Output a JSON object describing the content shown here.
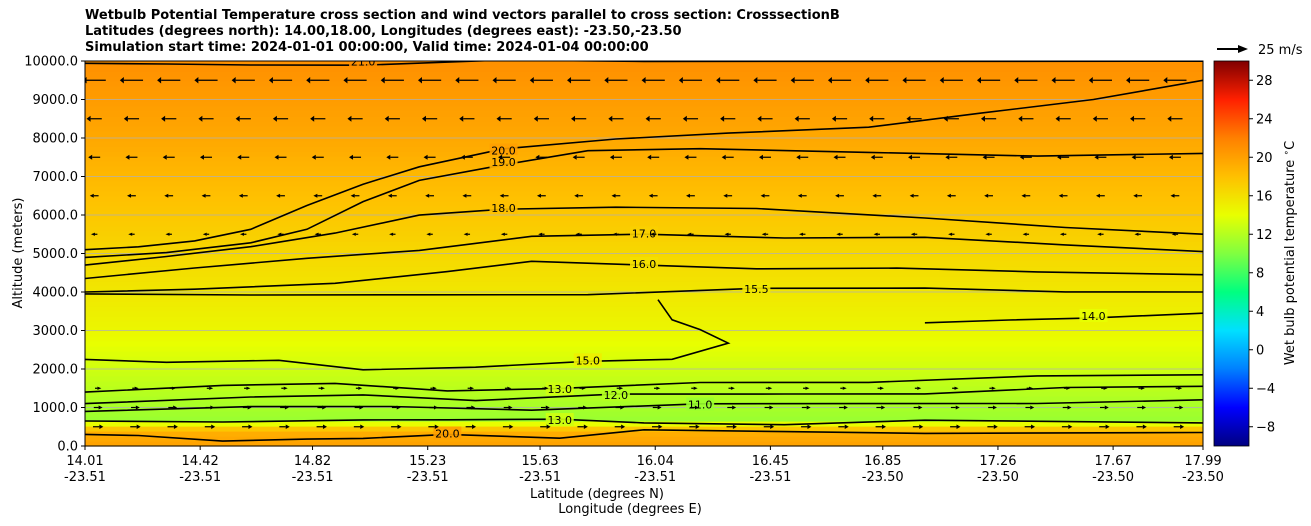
{
  "chart_data": {
    "type": "heatmap",
    "title_lines": [
      "Wetbulb Potential Temperature cross section and wind vectors parallel to cross section: CrosssectionB",
      "Latitudes (degrees north): 14.00,18.00, Longitudes (degrees east): -23.50,-23.50",
      "Simulation start time: 2024-01-01 00:00:00, Valid time: 2024-01-04 00:00:00"
    ],
    "ylabel": "Altitude (meters)",
    "xlabel_lat": "Latitude (degrees N)",
    "xlabel_lon": "Longitude (degrees E)",
    "ylim": [
      0,
      10000
    ],
    "yticks": [
      "0.0",
      "1000.0",
      "2000.0",
      "3000.0",
      "4000.0",
      "5000.0",
      "6000.0",
      "7000.0",
      "8000.0",
      "9000.0",
      "10000.0"
    ],
    "xlim": [
      14.01,
      17.99
    ],
    "xticks": [
      {
        "lat": "14.01",
        "lon": "-23.51"
      },
      {
        "lat": "14.42",
        "lon": "-23.51"
      },
      {
        "lat": "14.82",
        "lon": "-23.51"
      },
      {
        "lat": "15.23",
        "lon": "-23.51"
      },
      {
        "lat": "15.63",
        "lon": "-23.51"
      },
      {
        "lat": "16.04",
        "lon": "-23.51"
      },
      {
        "lat": "16.45",
        "lon": "-23.51"
      },
      {
        "lat": "16.85",
        "lon": "-23.50"
      },
      {
        "lat": "17.26",
        "lon": "-23.50"
      },
      {
        "lat": "17.67",
        "lon": "-23.50"
      },
      {
        "lat": "17.99",
        "lon": "-23.50"
      }
    ],
    "grid": "horizontal",
    "colorbar": {
      "label": "Wet bulb potential temperature $^\\circ$C",
      "range": [
        -10,
        30
      ],
      "ticks": [
        "28",
        "24",
        "20",
        "16",
        "12",
        "8",
        "4",
        "0",
        "−4",
        "−8"
      ],
      "colormap": [
        "#000080",
        "#0000ff",
        "#0080ff",
        "#00e0ff",
        "#00ff80",
        "#80ff40",
        "#e8ff00",
        "#ffc000",
        "#ff8000",
        "#ff2000",
        "#800000"
      ]
    },
    "quiver_key": "25 m/s",
    "background_field": [
      {
        "alt": 0,
        "value": 20
      },
      {
        "alt": 400,
        "value": 19
      },
      {
        "alt": 700,
        "value": 11
      },
      {
        "alt": 2000,
        "value": 13
      },
      {
        "alt": 3000,
        "value": 14.5
      },
      {
        "alt": 4000,
        "value": 15.5
      },
      {
        "alt": 6000,
        "value": 17.5
      },
      {
        "alt": 8000,
        "value": 19.5
      },
      {
        "alt": 10000,
        "value": 21
      }
    ],
    "contours": [
      {
        "level": "21.0",
        "points": [
          [
            14.01,
            9940
          ],
          [
            14.3,
            9900
          ],
          [
            14.6,
            9920
          ],
          [
            15.0,
            9960
          ],
          [
            15.5,
            9980
          ],
          [
            16.0,
            9990
          ],
          [
            17.99,
            9995
          ]
        ]
      },
      {
        "level": "20.0",
        "points": [
          [
            14.01,
            5100
          ],
          [
            14.2,
            5150
          ],
          [
            14.4,
            5350
          ],
          [
            14.6,
            5700
          ],
          [
            14.8,
            6200
          ],
          [
            15.0,
            6800
          ],
          [
            15.2,
            7300
          ],
          [
            15.5,
            7650
          ],
          [
            15.9,
            7950
          ],
          [
            16.3,
            8150
          ],
          [
            16.8,
            8350
          ],
          [
            17.2,
            8600
          ],
          [
            17.6,
            9000
          ],
          [
            17.99,
            9500
          ]
        ]
      },
      {
        "level": "19.0",
        "points": [
          [
            14.01,
            4900
          ],
          [
            14.3,
            5000
          ],
          [
            14.6,
            5300
          ],
          [
            14.8,
            5700
          ],
          [
            15.0,
            6300
          ],
          [
            15.2,
            6900
          ],
          [
            15.5,
            7350
          ],
          [
            15.8,
            7600
          ],
          [
            16.2,
            7700
          ],
          [
            16.8,
            7650
          ],
          [
            17.4,
            7600
          ],
          [
            17.99,
            7600
          ]
        ]
      },
      {
        "level": "18.0",
        "points": [
          [
            14.01,
            4700
          ],
          [
            14.3,
            4900
          ],
          [
            14.6,
            5200
          ],
          [
            14.9,
            5600
          ],
          [
            15.2,
            5950
          ],
          [
            15.5,
            6150
          ],
          [
            15.9,
            6250
          ],
          [
            16.4,
            6100
          ],
          [
            17.0,
            5900
          ],
          [
            17.5,
            5700
          ],
          [
            17.99,
            5500
          ]
        ]
      },
      {
        "level": "17.0",
        "points": [
          [
            14.01,
            4350
          ],
          [
            14.4,
            4600
          ],
          [
            14.8,
            4900
          ],
          [
            15.2,
            5150
          ],
          [
            15.6,
            5400
          ],
          [
            16.0,
            5500
          ],
          [
            16.5,
            5450
          ],
          [
            17.0,
            5350
          ],
          [
            17.5,
            5200
          ],
          [
            17.99,
            5050
          ]
        ]
      },
      {
        "level": "16.0",
        "points": [
          [
            14.01,
            4000
          ],
          [
            14.4,
            4050
          ],
          [
            14.9,
            4250
          ],
          [
            15.3,
            4600
          ],
          [
            15.6,
            4750
          ],
          [
            16.0,
            4700
          ],
          [
            16.4,
            4650
          ],
          [
            16.9,
            4550
          ],
          [
            17.4,
            4500
          ],
          [
            17.99,
            4450
          ]
        ]
      },
      {
        "level": "15.5",
        "points": [
          [
            14.01,
            3950
          ],
          [
            14.6,
            3900
          ],
          [
            15.2,
            3950
          ],
          [
            15.8,
            4000
          ],
          [
            16.4,
            4050
          ],
          [
            17.0,
            4100
          ],
          [
            17.5,
            4050
          ],
          [
            17.99,
            4000
          ]
        ]
      },
      {
        "level": "15.0",
        "points": [
          [
            14.01,
            2250
          ],
          [
            14.3,
            2150
          ],
          [
            14.7,
            2250
          ],
          [
            15.0,
            2050
          ],
          [
            15.4,
            2000
          ],
          [
            15.8,
            2200
          ],
          [
            16.1,
            2300
          ],
          [
            16.3,
            2600
          ],
          [
            16.2,
            3000
          ],
          [
            16.1,
            3300
          ],
          [
            16.05,
            3800
          ]
        ]
      },
      {
        "level": "14.0",
        "points": [
          [
            17.0,
            3200
          ],
          [
            17.3,
            3250
          ],
          [
            17.6,
            3350
          ],
          [
            17.99,
            3450
          ]
        ]
      },
      {
        "level": "13.0",
        "points": [
          [
            14.01,
            1400
          ],
          [
            14.5,
            1550
          ],
          [
            14.9,
            1650
          ],
          [
            15.3,
            1500
          ],
          [
            15.7,
            1450
          ],
          [
            16.2,
            1650
          ],
          [
            16.8,
            1700
          ],
          [
            17.4,
            1750
          ],
          [
            17.99,
            1850
          ]
        ]
      },
      {
        "level": "12.0",
        "points": [
          [
            14.01,
            1100
          ],
          [
            14.6,
            1250
          ],
          [
            15.0,
            1350
          ],
          [
            15.4,
            1250
          ],
          [
            15.9,
            1300
          ],
          [
            16.5,
            1350
          ],
          [
            17.0,
            1400
          ],
          [
            17.5,
            1450
          ],
          [
            17.99,
            1550
          ]
        ]
      },
      {
        "level": "11.0",
        "points": [
          [
            14.01,
            900
          ],
          [
            14.6,
            1000
          ],
          [
            15.1,
            1050
          ],
          [
            15.6,
            1000
          ],
          [
            16.2,
            1050
          ],
          [
            16.8,
            1100
          ],
          [
            17.4,
            1150
          ],
          [
            17.99,
            1200
          ]
        ]
      },
      {
        "level": "13.0",
        "points": [
          [
            14.01,
            650
          ],
          [
            14.5,
            600
          ],
          [
            15.0,
            700
          ],
          [
            15.3,
            750
          ],
          [
            15.7,
            650
          ],
          [
            16.0,
            600
          ],
          [
            16.5,
            600
          ],
          [
            17.0,
            600
          ],
          [
            17.99,
            600
          ]
        ]
      },
      {
        "level": "20.0",
        "points": [
          [
            14.01,
            300
          ],
          [
            14.2,
            250
          ],
          [
            14.5,
            150
          ],
          [
            14.8,
            250
          ],
          [
            15.0,
            150
          ],
          [
            15.3,
            300
          ],
          [
            15.7,
            250
          ],
          [
            16.0,
            350
          ],
          [
            16.5,
            350
          ],
          [
            17.0,
            350
          ],
          [
            17.99,
            350
          ]
        ]
      }
    ],
    "wind_rows": [
      {
        "alt": 9500,
        "direction": "westward",
        "speed": 12
      },
      {
        "alt": 8500,
        "direction": "westward",
        "speed": 7
      },
      {
        "alt": 7500,
        "direction": "westward",
        "speed": 5
      },
      {
        "alt": 6500,
        "direction": "westward",
        "speed": 3
      },
      {
        "alt": 5500,
        "direction": "westward",
        "speed": 1.5
      },
      {
        "alt": 1500,
        "direction": "eastward",
        "speed": 1.5
      },
      {
        "alt": 1000,
        "direction": "eastward",
        "speed": 3
      },
      {
        "alt": 500,
        "direction": "eastward",
        "speed": 4
      }
    ]
  }
}
